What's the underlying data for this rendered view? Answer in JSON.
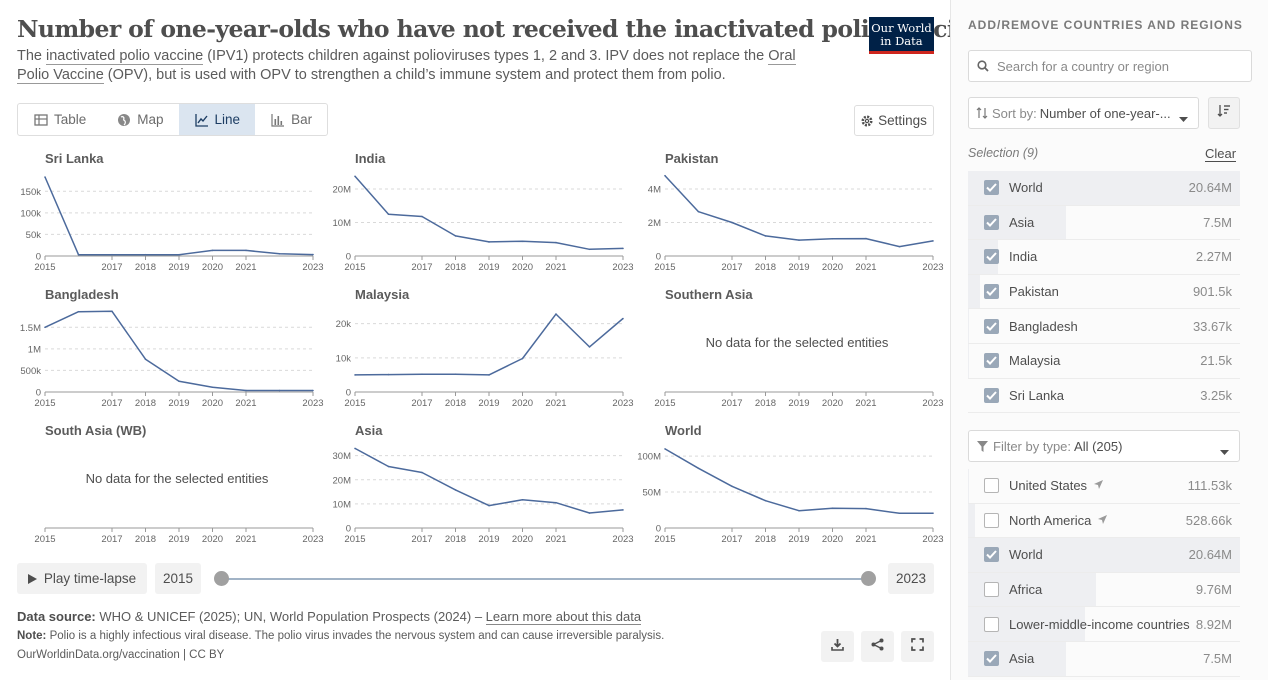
{
  "header": {
    "title": "Number of one-year-olds who have not received the inactivated polio vaccine",
    "subtitle_parts": [
      "The ",
      "inactivated polio vaccine",
      " (IPV1) protects children against polioviruses types 1, 2 and 3. IPV does not replace the ",
      "Oral Polio Vaccine",
      " (OPV), but is used with OPV to strengthen a child’s immune system and protect them from polio."
    ],
    "logo_line1": "Our World",
    "logo_line2": "in Data"
  },
  "tabs": [
    {
      "label": "Table",
      "icon": "table-icon",
      "active": false
    },
    {
      "label": "Map",
      "icon": "globe-icon",
      "active": false
    },
    {
      "label": "Line",
      "icon": "line-chart-icon",
      "active": true
    },
    {
      "label": "Bar",
      "icon": "bar-chart-icon",
      "active": false
    }
  ],
  "settings_label": "Settings",
  "chart_data": [
    {
      "type": "line",
      "title": "Sri Lanka",
      "x": [
        2015,
        2016,
        2017,
        2018,
        2019,
        2020,
        2021,
        2022,
        2023
      ],
      "y": [
        183000,
        3000,
        3000,
        3000,
        3000,
        13000,
        13000,
        5000,
        3250
      ],
      "yticks": [
        "0",
        "50k",
        "100k",
        "150k"
      ],
      "ytick_values": [
        0,
        50000,
        100000,
        150000
      ],
      "ylim": [
        0,
        190000
      ],
      "xticks": [
        "2015",
        "2017",
        "2018",
        "2019",
        "2020",
        "2021",
        "2023"
      ]
    },
    {
      "type": "line",
      "title": "India",
      "x": [
        2015,
        2016,
        2017,
        2018,
        2019,
        2020,
        2021,
        2022,
        2023
      ],
      "y": [
        23800000,
        12500000,
        11800000,
        6000000,
        4200000,
        4400000,
        4000000,
        2000000,
        2270000
      ],
      "yticks": [
        "0",
        "10M",
        "20M"
      ],
      "ytick_values": [
        0,
        10000000,
        20000000
      ],
      "ylim": [
        0,
        24500000
      ],
      "xticks": [
        "2015",
        "2017",
        "2018",
        "2019",
        "2020",
        "2021",
        "2023"
      ]
    },
    {
      "type": "line",
      "title": "Pakistan",
      "x": [
        2015,
        2016,
        2017,
        2018,
        2019,
        2020,
        2021,
        2022,
        2023
      ],
      "y": [
        4800000,
        2650000,
        2000000,
        1200000,
        950000,
        1030000,
        1040000,
        560000,
        901500
      ],
      "yticks": [
        "0",
        "2M",
        "4M"
      ],
      "ytick_values": [
        0,
        2000000,
        4000000
      ],
      "ylim": [
        0,
        4900000
      ],
      "xticks": [
        "2015",
        "2017",
        "2018",
        "2019",
        "2020",
        "2021",
        "2023"
      ]
    },
    {
      "type": "line",
      "title": "Bangladesh",
      "x": [
        2015,
        2016,
        2017,
        2018,
        2019,
        2020,
        2021,
        2022,
        2023
      ],
      "y": [
        1500000,
        1860000,
        1870000,
        760000,
        250000,
        110000,
        33670,
        33670,
        33670
      ],
      "yticks": [
        "0",
        "500k",
        "1M",
        "1.5M"
      ],
      "ytick_values": [
        0,
        500000,
        1000000,
        1500000
      ],
      "ylim": [
        0,
        1900000
      ],
      "xticks": [
        "2015",
        "2017",
        "2018",
        "2019",
        "2020",
        "2021",
        "2023"
      ]
    },
    {
      "type": "line",
      "title": "Malaysia",
      "x": [
        2015,
        2016,
        2017,
        2018,
        2019,
        2020,
        2021,
        2022,
        2023
      ],
      "y": [
        5000,
        5100,
        5200,
        5200,
        5000,
        9800,
        22800,
        13200,
        21500
      ],
      "yticks": [
        "0",
        "10k",
        "20k"
      ],
      "ytick_values": [
        0,
        10000,
        20000
      ],
      "ylim": [
        0,
        24000
      ],
      "xticks": [
        "2015",
        "2017",
        "2018",
        "2019",
        "2020",
        "2021",
        "2023"
      ]
    },
    {
      "type": "line",
      "title": "Southern Asia",
      "x": [],
      "y": [],
      "empty_text": "No data for the selected entities",
      "yticks": [],
      "ytick_values": [],
      "ylim": [
        0,
        1
      ],
      "xticks": [
        "2015",
        "2017",
        "2018",
        "2019",
        "2020",
        "2021",
        "2023"
      ]
    },
    {
      "type": "line",
      "title": "South Asia (WB)",
      "x": [],
      "y": [],
      "empty_text": "No data for the selected entities",
      "yticks": [],
      "ytick_values": [],
      "ylim": [
        0,
        1
      ],
      "xticks": [
        "2015",
        "2017",
        "2018",
        "2019",
        "2020",
        "2021",
        "2023"
      ]
    },
    {
      "type": "line",
      "title": "Asia",
      "x": [
        2015,
        2016,
        2017,
        2018,
        2019,
        2020,
        2021,
        2022,
        2023
      ],
      "y": [
        33000000,
        25500000,
        23000000,
        15800000,
        9300000,
        11700000,
        10500000,
        6200000,
        7500000
      ],
      "yticks": [
        "0",
        "10M",
        "20M",
        "30M"
      ],
      "ytick_values": [
        0,
        10000000,
        20000000,
        30000000
      ],
      "ylim": [
        0,
        34000000
      ],
      "xticks": [
        "2015",
        "2017",
        "2018",
        "2019",
        "2020",
        "2021",
        "2023"
      ]
    },
    {
      "type": "line",
      "title": "World",
      "x": [
        2015,
        2016,
        2017,
        2018,
        2019,
        2020,
        2021,
        2022,
        2023
      ],
      "y": [
        110000000,
        83000000,
        58000000,
        38000000,
        24000000,
        27500000,
        27000000,
        20500000,
        20640000
      ],
      "yticks": [
        "0",
        "50M",
        "100M"
      ],
      "ytick_values": [
        0,
        50000000,
        100000000
      ],
      "ylim": [
        0,
        114000000
      ],
      "xticks": [
        "2015",
        "2017",
        "2018",
        "2019",
        "2020",
        "2021",
        "2023"
      ]
    }
  ],
  "timeline": {
    "play_label": "Play time-lapse",
    "start_year": "2015",
    "end_year": "2023"
  },
  "footer": {
    "source_label": "Data source:",
    "source_text": "WHO & UNICEF (2025); UN, World Population Prospects (2024) – ",
    "source_link": "Learn more about this data",
    "note_label": "Note:",
    "note_text": "Polio is a highly infectious viral disease. The polio virus invades the nervous system and can cause irreversible paralysis.",
    "credit": "OurWorldinData.org/vaccination | CC BY"
  },
  "sidebar": {
    "heading": "ADD/REMOVE COUNTRIES AND REGIONS",
    "search_placeholder": "Search for a country or region",
    "sort_label": "Sort by:",
    "sort_value": "Number of one-year-...",
    "selection_label": "Selection (9)",
    "clear_label": "Clear",
    "selected": [
      {
        "name": "World",
        "value": "20.64M",
        "share": 1.0
      },
      {
        "name": "Asia",
        "value": "7.5M",
        "share": 0.36
      },
      {
        "name": "India",
        "value": "2.27M",
        "share": 0.11
      },
      {
        "name": "Pakistan",
        "value": "901.5k",
        "share": 0.044
      },
      {
        "name": "Bangladesh",
        "value": "33.67k",
        "share": 0.002
      },
      {
        "name": "Malaysia",
        "value": "21.5k",
        "share": 0.001
      },
      {
        "name": "Sri Lanka",
        "value": "3.25k",
        "share": 0.0002
      }
    ],
    "filter_label": "Filter by type:",
    "filter_value": "All (205)",
    "all_entities": [
      {
        "name": "United States",
        "value": "111.53k",
        "checked": false,
        "located": true,
        "share": 0.005
      },
      {
        "name": "North America",
        "value": "528.66k",
        "checked": false,
        "located": true,
        "share": 0.026
      },
      {
        "name": "World",
        "value": "20.64M",
        "checked": true,
        "located": false,
        "share": 1.0
      },
      {
        "name": "Africa",
        "value": "9.76M",
        "checked": false,
        "located": false,
        "share": 0.47
      },
      {
        "name": "Lower-middle-income countries",
        "value": "8.92M",
        "checked": false,
        "located": false,
        "share": 0.43
      },
      {
        "name": "Asia",
        "value": "7.5M",
        "checked": true,
        "located": false,
        "share": 0.36
      }
    ]
  },
  "colors": {
    "line": "#4c6a9c",
    "accent": "#1d3d63",
    "logo_bg": "#002147",
    "logo_red": "#ce261e",
    "panel_bar": "#eeeff2"
  }
}
